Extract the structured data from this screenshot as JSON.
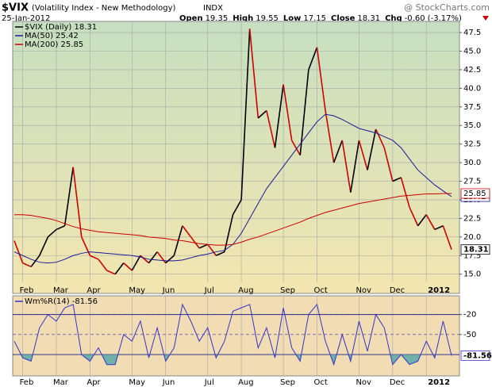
{
  "header": {
    "symbol": "$VIX",
    "name": "(Volatility Index - New Methodology)",
    "exchange": "INDX",
    "date": "25-Jan-2012",
    "quote": [
      {
        "label": "Open",
        "value": "19.35"
      },
      {
        "label": "High",
        "value": "19.55"
      },
      {
        "label": "Low",
        "value": "17.15"
      },
      {
        "label": "Close",
        "value": "18.31"
      },
      {
        "label": "Chg",
        "value": "-0.60 (-3.17%)"
      }
    ],
    "credit": "@ StockCharts.com"
  },
  "chart_data": [
    {
      "type": "line",
      "categories": [
        null,
        "Feb",
        null,
        null,
        null,
        "Mar",
        null,
        null,
        null,
        "Apr",
        null,
        null,
        null,
        null,
        "May",
        null,
        null,
        null,
        "Jun",
        null,
        null,
        null,
        null,
        "Jul",
        null,
        null,
        null,
        "Aug",
        null,
        null,
        null,
        null,
        "Sep",
        null,
        null,
        null,
        "Oct",
        null,
        null,
        null,
        null,
        "Nov",
        null,
        null,
        null,
        "Dec",
        null,
        null,
        null,
        "2012",
        null,
        null,
        null
      ],
      "series": [
        {
          "name": "$VIX (Daily) 18.31",
          "color": "#000000",
          "down_color": "#cc0000",
          "values": [
            19.5,
            16.5,
            16.0,
            17.5,
            20.0,
            21.0,
            21.5,
            29.4,
            20.0,
            17.5,
            17.0,
            15.5,
            15.0,
            16.5,
            15.5,
            17.5,
            16.5,
            18.0,
            16.5,
            17.5,
            21.5,
            20.0,
            18.5,
            19.0,
            17.5,
            18.0,
            23.0,
            25.0,
            48.0,
            36.0,
            37.0,
            32.0,
            40.5,
            33.0,
            31.0,
            42.5,
            45.5,
            37.0,
            30.0,
            33.0,
            26.0,
            33.0,
            29.0,
            34.5,
            32.0,
            27.5,
            28.0,
            24.0,
            21.5,
            23.0,
            21.0,
            21.5,
            18.31
          ]
        },
        {
          "name": "MA(50) 25.42",
          "color": "#1a1a99",
          "values": [
            18.0,
            17.5,
            17.0,
            16.6,
            16.5,
            16.6,
            17.0,
            17.5,
            17.8,
            18.0,
            17.9,
            17.8,
            17.7,
            17.6,
            17.5,
            17.3,
            17.0,
            16.9,
            16.8,
            16.8,
            16.9,
            17.2,
            17.5,
            17.7,
            18.0,
            18.2,
            19.0,
            20.5,
            22.5,
            24.5,
            26.5,
            28.0,
            29.5,
            31.0,
            32.5,
            34.0,
            35.5,
            36.5,
            36.3,
            35.8,
            35.2,
            34.6,
            34.3,
            34.0,
            33.5,
            33.0,
            32.0,
            30.5,
            29.0,
            28.0,
            27.0,
            26.2,
            25.42
          ]
        },
        {
          "name": "MA(200) 25.85",
          "color": "#cc0000",
          "values": [
            23.0,
            23.0,
            22.9,
            22.7,
            22.5,
            22.2,
            21.8,
            21.4,
            21.1,
            20.9,
            20.7,
            20.6,
            20.5,
            20.4,
            20.3,
            20.2,
            20.0,
            19.9,
            19.8,
            19.6,
            19.5,
            19.3,
            19.1,
            19.0,
            18.9,
            18.9,
            19.0,
            19.3,
            19.7,
            20.0,
            20.4,
            20.8,
            21.2,
            21.6,
            22.0,
            22.5,
            22.9,
            23.3,
            23.6,
            23.9,
            24.2,
            24.5,
            24.7,
            24.9,
            25.1,
            25.3,
            25.5,
            25.6,
            25.7,
            25.8,
            25.8,
            25.85,
            25.85
          ]
        }
      ],
      "ylim": [
        13.9,
        49.0
      ],
      "yticks": [
        {
          "value": 15,
          "label": "15.0"
        },
        17.5,
        {
          "value": 20,
          "label": "20.0"
        },
        22.5,
        {
          "value": 25,
          "label": "25.0"
        },
        27.5,
        {
          "value": 30,
          "label": "30.0"
        },
        32.5,
        {
          "value": 35,
          "label": "35.0"
        },
        37.5,
        {
          "value": 40,
          "label": "40.0"
        },
        42.5,
        {
          "value": 45,
          "label": "45.0"
        },
        47.5
      ],
      "grid": true,
      "background": [
        "#c6dfc0",
        "#f3e6b0"
      ]
    },
    {
      "type": "line",
      "categories": [
        null,
        "Feb",
        null,
        null,
        null,
        "Mar",
        null,
        null,
        null,
        "Apr",
        null,
        null,
        null,
        null,
        "May",
        null,
        null,
        null,
        "Jun",
        null,
        null,
        null,
        null,
        "Jul",
        null,
        null,
        null,
        "Aug",
        null,
        null,
        null,
        null,
        "Sep",
        null,
        null,
        null,
        "Oct",
        null,
        null,
        null,
        null,
        "Nov",
        null,
        null,
        null,
        "Dec",
        null,
        null,
        null,
        "2012",
        null,
        null,
        null
      ],
      "series": [
        {
          "name": "Wm%R(14) -81.56",
          "color": "#3333cc",
          "values": [
            -60,
            -85,
            -90,
            -40,
            -20,
            -30,
            -10,
            -5,
            -80,
            -90,
            -70,
            -95,
            -95,
            -50,
            -60,
            -30,
            -85,
            -40,
            -90,
            -70,
            -5,
            -30,
            -60,
            -40,
            -85,
            -60,
            -15,
            -10,
            -5,
            -70,
            -40,
            -85,
            -10,
            -70,
            -90,
            -20,
            -5,
            -60,
            -95,
            -50,
            -90,
            -30,
            -75,
            -20,
            -40,
            -95,
            -80,
            -95,
            -90,
            -60,
            -85,
            -30,
            -81.56
          ]
        }
      ],
      "ylim": [
        -112,
        8
      ],
      "yticks": [
        -20,
        -50
      ],
      "bands": [
        -20,
        -80
      ],
      "fill_below": -80,
      "fill_color": "#6fb0a8",
      "grid": true,
      "background": [
        "#f2dcb4",
        "#f2dcb4"
      ]
    }
  ]
}
